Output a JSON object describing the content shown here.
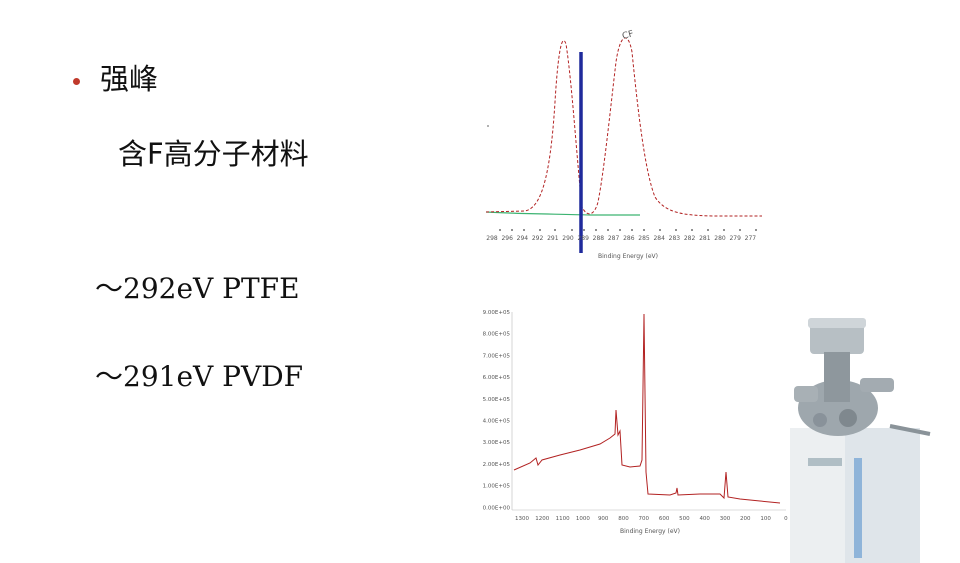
{
  "slide": {
    "bullet_heading": "强峰",
    "sub_heading": "含F高分子材料",
    "lines": [
      "～292eV PTFE",
      "～291eV PVDF"
    ]
  },
  "charts": {
    "top": {
      "peak_label": "CF",
      "xlabel": "Binding Energy (eV)",
      "xticks": [
        "298",
        "296",
        "294",
        "292",
        "291",
        "290",
        "289",
        "288",
        "287",
        "286",
        "285",
        "284",
        "283",
        "282",
        "281",
        "280",
        "279",
        "277"
      ]
    },
    "bottom": {
      "xlabel": "Binding Energy (eV)",
      "yticks": [
        "9.00E+05",
        "8.00E+05",
        "7.00E+05",
        "6.00E+05",
        "5.00E+05",
        "4.00E+05",
        "3.00E+05",
        "2.00E+05",
        "1.00E+05",
        "0.00E+00"
      ],
      "xticks": [
        "1300",
        "1200",
        "1100",
        "1000",
        "900",
        "800",
        "700",
        "600",
        "500",
        "400",
        "300",
        "200",
        "100",
        "0"
      ]
    }
  },
  "colors": {
    "bullet": "#c0392b",
    "spectrum": "#b22222",
    "marker": "#1f2a9c",
    "baseline": "#3cb371"
  }
}
